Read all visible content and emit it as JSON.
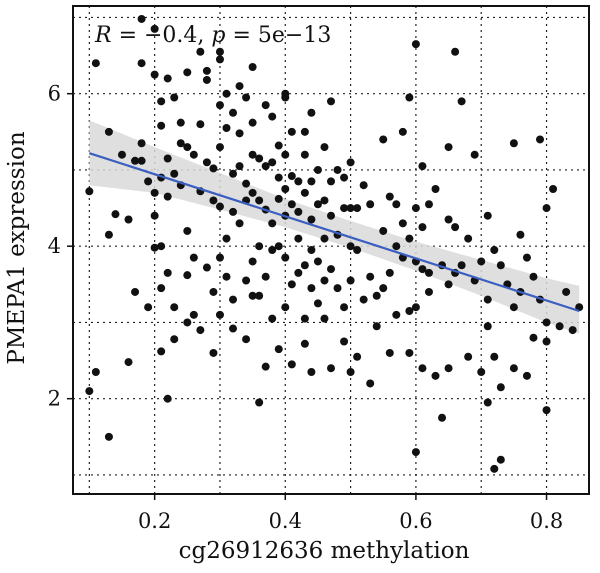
{
  "chart_data": {
    "type": "scatter",
    "title": "",
    "xlabel": "cg26912636 methylation",
    "ylabel": "PMEPA1 expression",
    "xlim": [
      0.075,
      0.865
    ],
    "ylim": [
      0.75,
      7.15
    ],
    "xticks": [
      0.2,
      0.4,
      0.6,
      0.8
    ],
    "xtick_labels": [
      "0.2",
      "0.4",
      "0.6",
      "0.8"
    ],
    "yticks": [
      2,
      4,
      6
    ],
    "ytick_labels": [
      "2",
      "4",
      "6"
    ],
    "minor_xgrid": [
      0.1,
      0.3,
      0.5,
      0.7
    ],
    "minor_ygrid": [
      1,
      3,
      5,
      7
    ],
    "grid": "dotted",
    "annotation": {
      "r_symbol": "R",
      "r_text": " = −0.4, ",
      "p_symbol": "p",
      "p_text": " = 5e−13"
    },
    "fit_line": {
      "x": [
        0.1,
        0.85
      ],
      "y": [
        5.22,
        3.15
      ],
      "color": "#3b5fc0"
    },
    "confidence_band": {
      "x": [
        0.1,
        0.2,
        0.3,
        0.4,
        0.5,
        0.6,
        0.7,
        0.8,
        0.85
      ],
      "lower": [
        4.8,
        4.7,
        4.48,
        4.25,
        3.98,
        3.68,
        3.35,
        3.0,
        2.85
      ],
      "upper": [
        5.65,
        5.3,
        4.96,
        4.62,
        4.33,
        4.06,
        3.82,
        3.58,
        3.48
      ]
    },
    "colors": {
      "points": "#111111",
      "band": "#d9d9d9"
    },
    "points": [
      [
        0.1,
        4.72
      ],
      [
        0.1,
        2.1
      ],
      [
        0.11,
        2.35
      ],
      [
        0.11,
        6.4
      ],
      [
        0.13,
        1.5
      ],
      [
        0.13,
        4.15
      ],
      [
        0.13,
        5.5
      ],
      [
        0.14,
        4.42
      ],
      [
        0.15,
        5.2
      ],
      [
        0.16,
        4.35
      ],
      [
        0.16,
        2.48
      ],
      [
        0.17,
        5.12
      ],
      [
        0.17,
        3.4
      ],
      [
        0.18,
        6.98
      ],
      [
        0.18,
        5.12
      ],
      [
        0.18,
        5.35
      ],
      [
        0.18,
        6.4
      ],
      [
        0.19,
        4.85
      ],
      [
        0.19,
        3.2
      ],
      [
        0.2,
        6.85
      ],
      [
        0.2,
        4.7
      ],
      [
        0.2,
        4.4
      ],
      [
        0.2,
        3.98
      ],
      [
        0.2,
        6.25
      ],
      [
        0.21,
        5.9
      ],
      [
        0.21,
        5.58
      ],
      [
        0.21,
        4.9
      ],
      [
        0.21,
        4.0
      ],
      [
        0.21,
        2.62
      ],
      [
        0.21,
        3.45
      ],
      [
        0.22,
        6.2
      ],
      [
        0.22,
        5.15
      ],
      [
        0.22,
        4.65
      ],
      [
        0.22,
        3.65
      ],
      [
        0.22,
        2.0
      ],
      [
        0.23,
        4.95
      ],
      [
        0.23,
        3.2
      ],
      [
        0.23,
        2.78
      ],
      [
        0.23,
        5.95
      ],
      [
        0.24,
        5.35
      ],
      [
        0.24,
        5.62
      ],
      [
        0.24,
        4.8
      ],
      [
        0.25,
        5.3
      ],
      [
        0.25,
        4.2
      ],
      [
        0.25,
        3.62
      ],
      [
        0.25,
        3.0
      ],
      [
        0.25,
        6.28
      ],
      [
        0.26,
        5.2
      ],
      [
        0.26,
        3.85
      ],
      [
        0.26,
        3.1
      ],
      [
        0.27,
        6.55
      ],
      [
        0.27,
        5.6
      ],
      [
        0.27,
        4.72
      ],
      [
        0.27,
        2.9
      ],
      [
        0.28,
        6.3
      ],
      [
        0.28,
        6.18
      ],
      [
        0.28,
        5.1
      ],
      [
        0.28,
        3.72
      ],
      [
        0.29,
        5.02
      ],
      [
        0.29,
        4.6
      ],
      [
        0.29,
        3.4
      ],
      [
        0.29,
        2.6
      ],
      [
        0.3,
        6.55
      ],
      [
        0.3,
        6.45
      ],
      [
        0.3,
        5.85
      ],
      [
        0.3,
        5.3
      ],
      [
        0.3,
        4.52
      ],
      [
        0.3,
        3.85
      ],
      [
        0.3,
        3.1
      ],
      [
        0.31,
        6.0
      ],
      [
        0.31,
        5.55
      ],
      [
        0.31,
        4.1
      ],
      [
        0.31,
        3.6
      ],
      [
        0.32,
        5.75
      ],
      [
        0.32,
        4.95
      ],
      [
        0.32,
        4.45
      ],
      [
        0.32,
        3.3
      ],
      [
        0.32,
        2.92
      ],
      [
        0.33,
        6.1
      ],
      [
        0.33,
        5.48
      ],
      [
        0.33,
        5.05
      ],
      [
        0.33,
        4.3
      ],
      [
        0.34,
        5.95
      ],
      [
        0.34,
        4.82
      ],
      [
        0.34,
        4.6
      ],
      [
        0.34,
        3.55
      ],
      [
        0.34,
        2.78
      ],
      [
        0.35,
        6.35
      ],
      [
        0.35,
        5.62
      ],
      [
        0.35,
        5.2
      ],
      [
        0.35,
        4.7
      ],
      [
        0.35,
        3.8
      ],
      [
        0.35,
        3.35
      ],
      [
        0.36,
        5.15
      ],
      [
        0.36,
        4.6
      ],
      [
        0.36,
        4.0
      ],
      [
        0.36,
        3.35
      ],
      [
        0.36,
        1.95
      ],
      [
        0.37,
        5.85
      ],
      [
        0.37,
        5.05
      ],
      [
        0.37,
        4.48
      ],
      [
        0.37,
        3.6
      ],
      [
        0.37,
        2.42
      ],
      [
        0.38,
        5.7
      ],
      [
        0.38,
        5.1
      ],
      [
        0.38,
        4.3
      ],
      [
        0.38,
        3.95
      ],
      [
        0.38,
        3.05
      ],
      [
        0.39,
        5.32
      ],
      [
        0.39,
        4.9
      ],
      [
        0.39,
        4.62
      ],
      [
        0.39,
        4.0
      ],
      [
        0.39,
        2.65
      ],
      [
        0.4,
        5.95
      ],
      [
        0.4,
        5.2
      ],
      [
        0.4,
        4.75
      ],
      [
        0.4,
        4.4
      ],
      [
        0.4,
        3.85
      ],
      [
        0.4,
        3.2
      ],
      [
        0.4,
        6.0
      ],
      [
        0.41,
        5.5
      ],
      [
        0.41,
        4.92
      ],
      [
        0.41,
        4.55
      ],
      [
        0.41,
        3.5
      ],
      [
        0.41,
        2.45
      ],
      [
        0.42,
        4.85
      ],
      [
        0.42,
        4.45
      ],
      [
        0.42,
        4.1
      ],
      [
        0.42,
        3.65
      ],
      [
        0.43,
        5.5
      ],
      [
        0.43,
        5.2
      ],
      [
        0.43,
        4.7
      ],
      [
        0.43,
        3.75
      ],
      [
        0.43,
        3.05
      ],
      [
        0.43,
        2.72
      ],
      [
        0.44,
        5.75
      ],
      [
        0.44,
        4.85
      ],
      [
        0.44,
        4.35
      ],
      [
        0.44,
        3.95
      ],
      [
        0.44,
        3.45
      ],
      [
        0.44,
        2.35
      ],
      [
        0.45,
        5.0
      ],
      [
        0.45,
        4.55
      ],
      [
        0.45,
        3.8
      ],
      [
        0.45,
        3.25
      ],
      [
        0.46,
        5.3
      ],
      [
        0.46,
        4.6
      ],
      [
        0.46,
        4.1
      ],
      [
        0.46,
        3.55
      ],
      [
        0.46,
        3.05
      ],
      [
        0.47,
        5.9
      ],
      [
        0.47,
        4.85
      ],
      [
        0.47,
        4.4
      ],
      [
        0.47,
        3.7
      ],
      [
        0.47,
        2.4
      ],
      [
        0.48,
        5.0
      ],
      [
        0.48,
        4.15
      ],
      [
        0.48,
        3.45
      ],
      [
        0.49,
        4.9
      ],
      [
        0.49,
        4.5
      ],
      [
        0.49,
        3.2
      ],
      [
        0.49,
        2.75
      ],
      [
        0.5,
        5.1
      ],
      [
        0.5,
        4.5
      ],
      [
        0.5,
        4.0
      ],
      [
        0.5,
        3.55
      ],
      [
        0.5,
        2.35
      ],
      [
        0.51,
        4.5
      ],
      [
        0.51,
        3.95
      ],
      [
        0.51,
        2.55
      ],
      [
        0.52,
        4.8
      ],
      [
        0.52,
        3.3
      ],
      [
        0.53,
        4.55
      ],
      [
        0.53,
        3.6
      ],
      [
        0.53,
        2.2
      ],
      [
        0.54,
        3.35
      ],
      [
        0.54,
        2.95
      ],
      [
        0.55,
        5.4
      ],
      [
        0.55,
        4.2
      ],
      [
        0.55,
        3.45
      ],
      [
        0.56,
        4.65
      ],
      [
        0.56,
        3.65
      ],
      [
        0.56,
        2.6
      ],
      [
        0.57,
        4.55
      ],
      [
        0.57,
        4.0
      ],
      [
        0.57,
        3.1
      ],
      [
        0.58,
        5.5
      ],
      [
        0.58,
        4.3
      ],
      [
        0.58,
        3.85
      ],
      [
        0.59,
        5.95
      ],
      [
        0.59,
        4.1
      ],
      [
        0.59,
        2.6
      ],
      [
        0.59,
        3.15
      ],
      [
        0.6,
        6.65
      ],
      [
        0.6,
        4.5
      ],
      [
        0.6,
        3.8
      ],
      [
        0.6,
        3.2
      ],
      [
        0.6,
        1.3
      ],
      [
        0.61,
        5.05
      ],
      [
        0.61,
        4.25
      ],
      [
        0.61,
        3.7
      ],
      [
        0.61,
        2.4
      ],
      [
        0.62,
        4.55
      ],
      [
        0.62,
        3.65
      ],
      [
        0.62,
        3.4
      ],
      [
        0.63,
        4.75
      ],
      [
        0.63,
        2.3
      ],
      [
        0.64,
        3.75
      ],
      [
        0.64,
        1.75
      ],
      [
        0.65,
        5.3
      ],
      [
        0.65,
        4.35
      ],
      [
        0.65,
        3.5
      ],
      [
        0.65,
        2.4
      ],
      [
        0.66,
        6.55
      ],
      [
        0.66,
        4.25
      ],
      [
        0.66,
        3.65
      ],
      [
        0.67,
        5.9
      ],
      [
        0.67,
        3.75
      ],
      [
        0.68,
        4.1
      ],
      [
        0.68,
        2.55
      ],
      [
        0.69,
        5.2
      ],
      [
        0.69,
        3.55
      ],
      [
        0.7,
        3.8
      ],
      [
        0.7,
        2.35
      ],
      [
        0.71,
        4.4
      ],
      [
        0.71,
        3.3
      ],
      [
        0.71,
        2.95
      ],
      [
        0.71,
        1.95
      ],
      [
        0.72,
        3.95
      ],
      [
        0.72,
        2.55
      ],
      [
        0.72,
        1.08
      ],
      [
        0.73,
        3.75
      ],
      [
        0.73,
        2.15
      ],
      [
        0.73,
        1.2
      ],
      [
        0.74,
        3.5
      ],
      [
        0.75,
        5.35
      ],
      [
        0.75,
        3.2
      ],
      [
        0.75,
        2.4
      ],
      [
        0.76,
        4.15
      ],
      [
        0.76,
        3.4
      ],
      [
        0.77,
        3.85
      ],
      [
        0.77,
        2.3
      ],
      [
        0.78,
        3.6
      ],
      [
        0.78,
        2.8
      ],
      [
        0.79,
        5.4
      ],
      [
        0.79,
        3.3
      ],
      [
        0.8,
        4.5
      ],
      [
        0.8,
        3.0
      ],
      [
        0.8,
        2.75
      ],
      [
        0.81,
        4.75
      ],
      [
        0.82,
        2.95
      ],
      [
        0.83,
        3.4
      ],
      [
        0.84,
        2.9
      ],
      [
        0.85,
        3.2
      ],
      [
        0.8,
        1.85
      ]
    ]
  }
}
